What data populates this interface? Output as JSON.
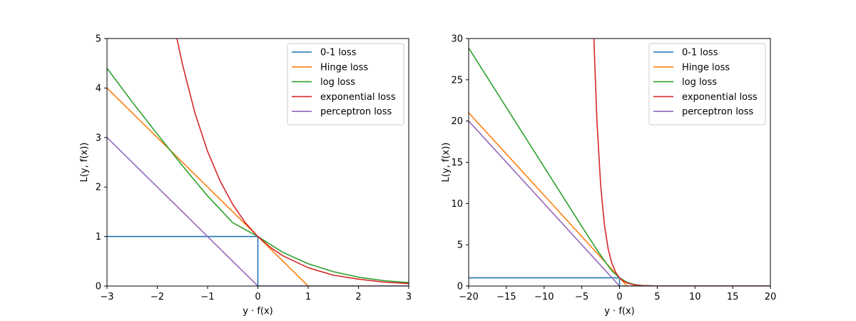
{
  "chart_data": [
    {
      "type": "line",
      "xlabel": "y · f(x)",
      "ylabel": "L(y, f(x))",
      "xlim": [
        -3,
        3
      ],
      "ylim": [
        0,
        5
      ],
      "xticks": [
        -3,
        -2,
        -1,
        0,
        1,
        2,
        3
      ],
      "xtick_labels": [
        "−3",
        "−2",
        "−1",
        "0",
        "1",
        "2",
        "3"
      ],
      "yticks": [
        0,
        1,
        2,
        3,
        4,
        5
      ],
      "ytick_labels": [
        "0",
        "1",
        "2",
        "3",
        "4",
        "5"
      ],
      "legend_position": "top-right",
      "series": [
        {
          "name": "0-1 loss",
          "color": "#1f77b4",
          "x": [
            -3,
            0,
            0,
            3
          ],
          "y": [
            1,
            1,
            0,
            0
          ]
        },
        {
          "name": "Hinge loss",
          "color": "#ff7f0e",
          "x": [
            -3,
            -2,
            -1,
            0,
            1,
            2,
            3
          ],
          "y": [
            4,
            3,
            2,
            1,
            0,
            0,
            0
          ]
        },
        {
          "name": "log loss",
          "color": "#2ca02c",
          "x": [
            -3,
            -2.5,
            -2,
            -1.5,
            -1,
            -0.5,
            0,
            0.5,
            1,
            1.5,
            2,
            2.5,
            3
          ],
          "y": [
            4.4,
            3.72,
            3.07,
            2.43,
            1.82,
            1.28,
            1.0,
            0.68,
            0.45,
            0.29,
            0.18,
            0.11,
            0.07
          ]
        },
        {
          "name": "exponential loss",
          "color": "#d62728",
          "x": [
            -1.61,
            -1.5,
            -1.25,
            -1,
            -0.75,
            -0.5,
            -0.25,
            0,
            0.25,
            0.5,
            1,
            1.5,
            2,
            2.5,
            3
          ],
          "y": [
            5.0,
            4.48,
            3.49,
            2.72,
            2.12,
            1.65,
            1.28,
            1.0,
            0.78,
            0.61,
            0.37,
            0.22,
            0.14,
            0.08,
            0.05
          ]
        },
        {
          "name": "perceptron loss",
          "color": "#9467bd",
          "x": [
            -3,
            -2,
            -1,
            0,
            1,
            2,
            3
          ],
          "y": [
            3,
            2,
            1,
            0,
            0,
            0,
            0
          ]
        }
      ]
    },
    {
      "type": "line",
      "xlabel": "y · f(x)",
      "ylabel": "L(y, f(x))",
      "xlim": [
        -20,
        20
      ],
      "ylim": [
        0,
        30
      ],
      "xticks": [
        -20,
        -15,
        -10,
        -5,
        0,
        5,
        10,
        15,
        20
      ],
      "xtick_labels": [
        "−20",
        "−15",
        "−10",
        "−5",
        "0",
        "5",
        "10",
        "15",
        "20"
      ],
      "yticks": [
        0,
        5,
        10,
        15,
        20,
        25,
        30
      ],
      "ytick_labels": [
        "0",
        "5",
        "10",
        "15",
        "20",
        "25",
        "30"
      ],
      "legend_position": "top-right",
      "series": [
        {
          "name": "0-1 loss",
          "color": "#1f77b4",
          "x": [
            -20,
            0,
            0,
            20
          ],
          "y": [
            1,
            1,
            0,
            0
          ]
        },
        {
          "name": "Hinge loss",
          "color": "#ff7f0e",
          "x": [
            -20,
            -10,
            0,
            1,
            20
          ],
          "y": [
            21,
            11,
            1,
            0,
            0
          ]
        },
        {
          "name": "log loss",
          "color": "#2ca02c",
          "x": [
            -20,
            -15,
            -10,
            -5,
            -3,
            -2,
            -1,
            0,
            1,
            2,
            3,
            5,
            10,
            20
          ],
          "y": [
            28.85,
            21.64,
            14.43,
            7.22,
            4.4,
            3.07,
            1.82,
            1.0,
            0.45,
            0.18,
            0.07,
            0.01,
            0.0,
            0.0
          ]
        },
        {
          "name": "exponential loss",
          "color": "#d62728",
          "x": [
            -3.4,
            -3.0,
            -2.5,
            -2.0,
            -1.5,
            -1.0,
            -0.5,
            0,
            0.5,
            1,
            2,
            3,
            5,
            20
          ],
          "y": [
            30.0,
            20.1,
            12.2,
            7.39,
            4.48,
            2.72,
            1.65,
            1.0,
            0.61,
            0.37,
            0.14,
            0.05,
            0.01,
            0.0
          ]
        },
        {
          "name": "perceptron loss",
          "color": "#9467bd",
          "x": [
            -20,
            0,
            20
          ],
          "y": [
            20,
            0,
            0
          ]
        }
      ]
    }
  ]
}
